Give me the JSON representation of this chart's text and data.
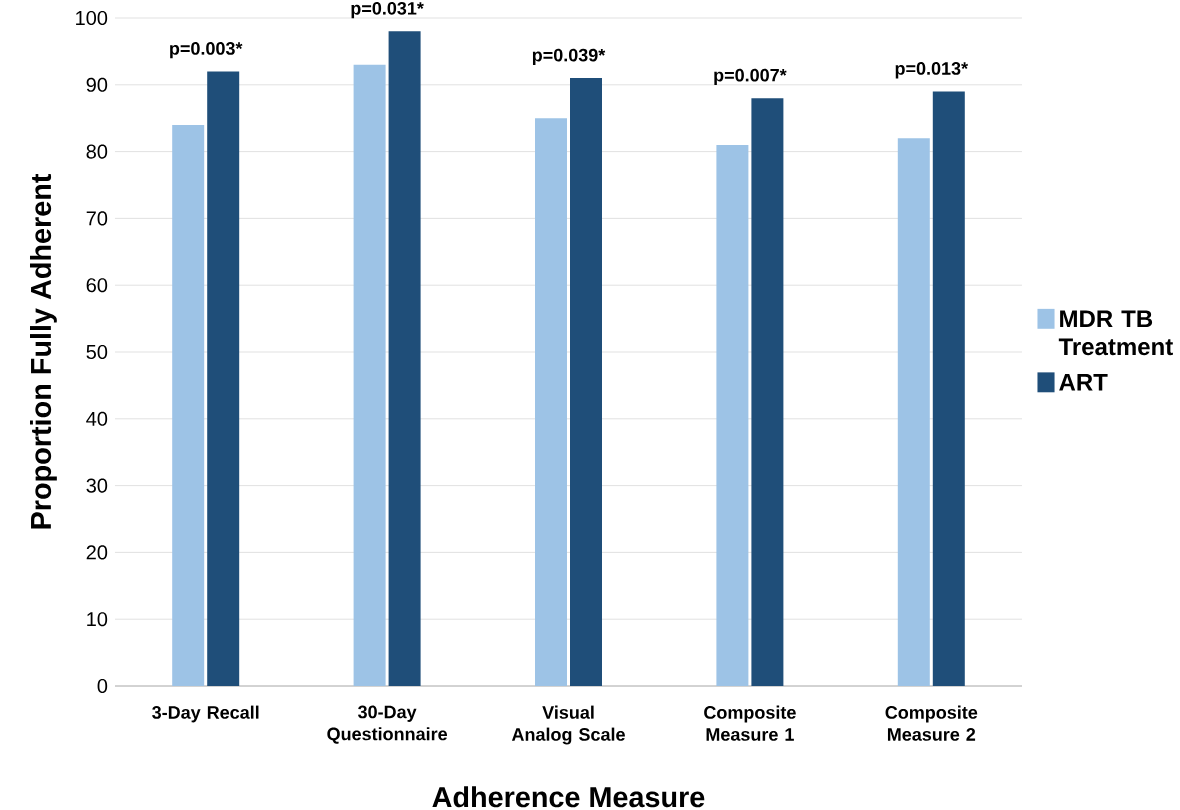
{
  "chart_data": {
    "type": "bar",
    "xlabel": "Adherence Measure",
    "ylabel": "Proportion Fully Adherent",
    "categories": [
      "3-Day Recall",
      "30-Day Questionnaire",
      "Visual Analog Scale",
      "Composite Measure 1",
      "Composite Measure 2"
    ],
    "series": [
      {
        "name": "MDR TB Treatment",
        "color": "#9dc3e6",
        "values": [
          84,
          93,
          85,
          81,
          82
        ]
      },
      {
        "name": "ART",
        "color": "#1f4e79",
        "values": [
          92,
          98,
          91,
          88,
          89
        ]
      }
    ],
    "ylim": [
      0,
      100
    ],
    "yticks": [
      0,
      10,
      20,
      30,
      40,
      50,
      60,
      70,
      80,
      90,
      100
    ],
    "grid": "y",
    "legend": "right",
    "annotations": [
      {
        "text": "p=0.003*",
        "x": "3-Day Recall",
        "y": 92
      },
      {
        "text": "p=0.031*",
        "x": "30-Day Questionnaire",
        "y": 98
      },
      {
        "text": "p=0.039*",
        "x": "Visual Analog Scale",
        "y": 91
      },
      {
        "text": "p=0.007*",
        "x": "Composite Measure 1",
        "y": 88
      },
      {
        "text": "p=0.013*",
        "x": "Composite Measure 2",
        "y": 89
      }
    ]
  }
}
